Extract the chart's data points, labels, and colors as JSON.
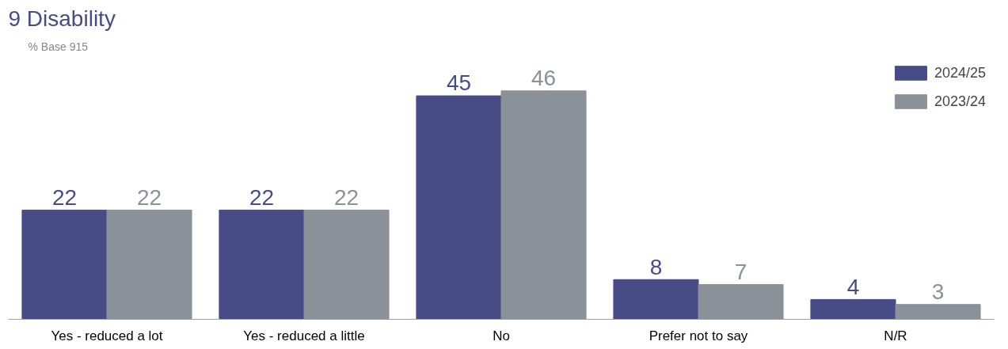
{
  "chart_data": {
    "type": "bar",
    "title": "9 Disability",
    "subtitle": "% Base 915",
    "categories": [
      "Yes - reduced a lot",
      "Yes - reduced a little",
      "No",
      "Prefer not to say",
      "N/R"
    ],
    "series": [
      {
        "name": "2024/25",
        "color": "#474c87",
        "values": [
          22,
          22,
          45,
          8,
          4
        ]
      },
      {
        "name": "2023/24",
        "color": "#8a9199",
        "values": [
          22,
          22,
          46,
          7,
          3
        ]
      }
    ],
    "data_labels": true,
    "legend": "top right",
    "grid": false
  }
}
